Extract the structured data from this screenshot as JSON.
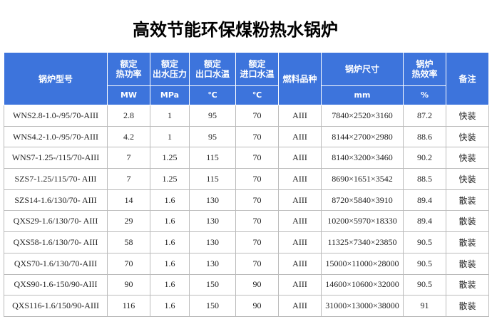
{
  "title": "高效节能环保煤粉热水锅炉",
  "table": {
    "headers": [
      "锅炉型号",
      "额定\n热功率",
      "额定\n出水压力",
      "额定\n出口水温",
      "额定\n进口水温",
      "燃料品种",
      "锅炉尺寸",
      "锅炉\n热效率",
      "备注"
    ],
    "units": [
      "MW",
      "MPa",
      "℃",
      "℃",
      "mm",
      "%"
    ],
    "rows": [
      [
        "WNS2.8-1.0-/95/70-AIII",
        "2.8",
        "1",
        "95",
        "70",
        "AIII",
        "7840×2520×3160",
        "87.2",
        "快装"
      ],
      [
        "WNS4.2-1.0-/95/70-AIII",
        "4.2",
        "1",
        "95",
        "70",
        "AIII",
        "8144×2700×2980",
        "88.6",
        "快装"
      ],
      [
        "WNS7-1.25-/115/70-AIII",
        "7",
        "1.25",
        "115",
        "70",
        "AIII",
        "8140×3200×3460",
        "90.2",
        "快装"
      ],
      [
        "SZS7-1.25/115/70- AIII",
        "7",
        "1.25",
        "115",
        "70",
        "AIII",
        "8690×1651×3542",
        "88.5",
        "快装"
      ],
      [
        "SZS14-1.6/130/70- AIII",
        "14",
        "1.6",
        "130",
        "70",
        "AIII",
        "8720×5840×3910",
        "89.4",
        "散装"
      ],
      [
        "QXS29-1.6/130/70- AIII",
        "29",
        "1.6",
        "130",
        "70",
        "AIII",
        "10200×5970×18330",
        "89.4",
        "散装"
      ],
      [
        "QXS58-1.6/130/70- AIII",
        "58",
        "1.6",
        "130",
        "70",
        "AIII",
        "11325×7340×23850",
        "90.5",
        "散装"
      ],
      [
        "QXS70-1.6/130/70-AIII",
        "70",
        "1.6",
        "130",
        "70",
        "AIII",
        "15000×11000×28000",
        "90.5",
        "散装"
      ],
      [
        "QXS90-1.6-150/90-AIII",
        "90",
        "1.6",
        "150",
        "90",
        "AIII",
        "14600×10600×32000",
        "90.5",
        "散装"
      ],
      [
        "QXS116-1.6/150/90-AIII",
        "116",
        "1.6",
        "150",
        "90",
        "AIII",
        "31000×13000×38000",
        "91",
        "散装"
      ]
    ]
  }
}
